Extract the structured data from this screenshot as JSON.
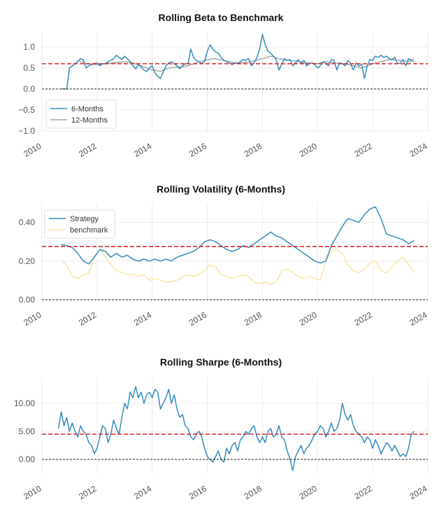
{
  "colors": {
    "strategy": "#348dbd",
    "twelve_months": "#a6a6a6",
    "benchmark": "#fbe6a0",
    "mean_line": "#d62728",
    "zero_line": "#222222",
    "grid": "#ebebeb"
  },
  "chart_data": [
    {
      "type": "line",
      "title": "Rolling Beta to Benchmark",
      "xlim": [
        2010,
        2024
      ],
      "ylim": [
        -1.0,
        1.35
      ],
      "x_ticks": [
        2010,
        2012,
        2014,
        2016,
        2018,
        2020,
        2022,
        2024
      ],
      "x_tick_labels": [
        "2010",
        "2012",
        "2014",
        "2016",
        "2018",
        "2020",
        "2022",
        "2024"
      ],
      "y_ticks": [
        -1.0,
        -0.5,
        0.0,
        0.5,
        1.0
      ],
      "y_tick_labels": [
        "−1.0",
        "−0.5",
        "0.0",
        "0.5",
        "1.0"
      ],
      "mean_line": 0.6,
      "zero_line": 0.0,
      "legend": "lower-left",
      "grid": true,
      "series": [
        {
          "name": "6-Months",
          "x": [
            2010.7,
            2010.8,
            2010.9,
            2011.0,
            2011.1,
            2011.2,
            2011.3,
            2011.4,
            2011.5,
            2011.6,
            2011.7,
            2011.8,
            2011.9,
            2012.0,
            2012.1,
            2012.2,
            2012.3,
            2012.4,
            2012.5,
            2012.6,
            2012.7,
            2012.8,
            2012.9,
            2013.0,
            2013.1,
            2013.2,
            2013.3,
            2013.4,
            2013.5,
            2013.6,
            2013.7,
            2013.8,
            2013.9,
            2014.0,
            2014.1,
            2014.2,
            2014.3,
            2014.4,
            2014.5,
            2014.6,
            2014.7,
            2014.8,
            2014.9,
            2015.0,
            2015.1,
            2015.2,
            2015.3,
            2015.4,
            2015.5,
            2015.6,
            2015.7,
            2015.8,
            2015.9,
            2016.0,
            2016.1,
            2016.2,
            2016.3,
            2016.4,
            2016.5,
            2016.6,
            2016.7,
            2016.8,
            2016.9,
            2017.0,
            2017.1,
            2017.2,
            2017.3,
            2017.4,
            2017.5,
            2017.6,
            2017.7,
            2017.8,
            2017.9,
            2018.0,
            2018.1,
            2018.2,
            2018.3,
            2018.4,
            2018.5,
            2018.6,
            2018.7,
            2018.8,
            2018.9,
            2019.0,
            2019.1,
            2019.2,
            2019.3,
            2019.4,
            2019.5,
            2019.6,
            2019.7,
            2019.8,
            2019.9,
            2020.0,
            2020.1,
            2020.2,
            2020.3,
            2020.4,
            2020.5,
            2020.6,
            2020.7,
            2020.8,
            2020.9,
            2021.0,
            2021.1,
            2021.2,
            2021.3,
            2021.4,
            2021.5,
            2021.6,
            2021.7,
            2021.8,
            2021.9,
            2022.0,
            2022.1,
            2022.2,
            2022.3,
            2022.4,
            2022.5,
            2022.6,
            2022.7,
            2022.8,
            2022.9,
            2023.0,
            2023.1,
            2023.2,
            2023.3,
            2023.4,
            2023.5
          ],
          "y": [
            0.0,
            0.0,
            0.0,
            0.5,
            0.55,
            0.6,
            0.65,
            0.72,
            0.7,
            0.5,
            0.55,
            0.58,
            0.6,
            0.62,
            0.55,
            0.6,
            0.6,
            0.65,
            0.68,
            0.72,
            0.8,
            0.75,
            0.7,
            0.78,
            0.72,
            0.65,
            0.55,
            0.48,
            0.58,
            0.52,
            0.45,
            0.42,
            0.5,
            0.55,
            0.38,
            0.3,
            0.25,
            0.4,
            0.55,
            0.62,
            0.65,
            0.6,
            0.55,
            0.48,
            0.55,
            0.6,
            0.6,
            0.95,
            0.75,
            0.68,
            0.65,
            0.6,
            0.65,
            0.9,
            1.05,
            0.95,
            0.88,
            0.85,
            0.75,
            0.68,
            0.65,
            0.62,
            0.58,
            0.62,
            0.6,
            0.65,
            0.7,
            0.68,
            0.72,
            0.55,
            0.62,
            0.75,
            0.95,
            1.3,
            1.05,
            0.9,
            0.85,
            0.78,
            0.7,
            0.45,
            0.6,
            0.72,
            0.68,
            0.7,
            0.55,
            0.62,
            0.7,
            0.6,
            0.68,
            0.55,
            0.6,
            0.62,
            0.58,
            0.5,
            0.55,
            0.65,
            0.6,
            0.55,
            0.7,
            0.68,
            0.45,
            0.62,
            0.6,
            0.55,
            0.68,
            0.6,
            0.45,
            0.62,
            0.55,
            0.58,
            0.25,
            0.55,
            0.7,
            0.68,
            0.78,
            0.75,
            0.8,
            0.75,
            0.78,
            0.72,
            0.7,
            0.75,
            0.6,
            0.62,
            0.7,
            0.55,
            0.72,
            0.68,
            0.65
          ]
        },
        {
          "name": "12-Months",
          "x": [
            2011.3,
            2011.6,
            2012.0,
            2012.3,
            2012.6,
            2013.0,
            2013.3,
            2013.6,
            2014.0,
            2014.3,
            2014.6,
            2015.0,
            2015.3,
            2015.6,
            2016.0,
            2016.3,
            2016.6,
            2017.0,
            2017.3,
            2017.6,
            2018.0,
            2018.3,
            2018.6,
            2019.0,
            2019.3,
            2019.6,
            2020.0,
            2020.3,
            2020.6,
            2021.0,
            2021.3,
            2021.6,
            2022.0,
            2022.3,
            2022.6,
            2023.0,
            2023.3,
            2023.5
          ],
          "y": [
            0.68,
            0.6,
            0.58,
            0.6,
            0.62,
            0.65,
            0.62,
            0.55,
            0.45,
            0.42,
            0.5,
            0.52,
            0.55,
            0.62,
            0.7,
            0.72,
            0.68,
            0.62,
            0.62,
            0.65,
            0.72,
            0.78,
            0.72,
            0.68,
            0.65,
            0.62,
            0.6,
            0.65,
            0.62,
            0.6,
            0.55,
            0.5,
            0.6,
            0.65,
            0.7,
            0.68,
            0.65,
            0.7
          ]
        }
      ]
    },
    {
      "type": "line",
      "title": "Rolling Volatility (6-Months)",
      "xlim": [
        2010,
        2024
      ],
      "ylim": [
        0.0,
        0.5
      ],
      "x_ticks": [
        2010,
        2012,
        2014,
        2016,
        2018,
        2020,
        2022,
        2024
      ],
      "x_tick_labels": [
        "2010",
        "2012",
        "2014",
        "2016",
        "2018",
        "2020",
        "2022",
        "2024"
      ],
      "y_ticks": [
        0.0,
        0.2,
        0.4
      ],
      "y_tick_labels": [
        "0.00",
        "0.20",
        "0.40"
      ],
      "mean_line": 0.275,
      "zero_line": 0.0,
      "legend": "top-left",
      "grid": true,
      "series": [
        {
          "name": "Strategy",
          "x": [
            2010.7,
            2010.9,
            2011.1,
            2011.3,
            2011.5,
            2011.7,
            2011.9,
            2012.1,
            2012.3,
            2012.5,
            2012.7,
            2012.9,
            2013.1,
            2013.3,
            2013.5,
            2013.7,
            2013.9,
            2014.1,
            2014.3,
            2014.5,
            2014.7,
            2014.9,
            2015.1,
            2015.3,
            2015.5,
            2015.7,
            2015.9,
            2016.1,
            2016.3,
            2016.5,
            2016.7,
            2016.9,
            2017.1,
            2017.3,
            2017.5,
            2017.7,
            2017.9,
            2018.1,
            2018.3,
            2018.5,
            2018.7,
            2018.9,
            2019.1,
            2019.3,
            2019.5,
            2019.7,
            2019.9,
            2020.1,
            2020.3,
            2020.5,
            2020.7,
            2020.9,
            2021.1,
            2021.3,
            2021.5,
            2021.7,
            2021.9,
            2022.1,
            2022.3,
            2022.5,
            2022.7,
            2022.9,
            2023.1,
            2023.3,
            2023.5
          ],
          "y": [
            0.285,
            0.28,
            0.27,
            0.24,
            0.2,
            0.185,
            0.22,
            0.26,
            0.25,
            0.22,
            0.24,
            0.22,
            0.23,
            0.21,
            0.2,
            0.21,
            0.2,
            0.21,
            0.2,
            0.21,
            0.2,
            0.22,
            0.23,
            0.24,
            0.25,
            0.27,
            0.3,
            0.31,
            0.3,
            0.28,
            0.26,
            0.25,
            0.26,
            0.28,
            0.27,
            0.29,
            0.31,
            0.33,
            0.35,
            0.33,
            0.32,
            0.3,
            0.28,
            0.26,
            0.24,
            0.22,
            0.2,
            0.19,
            0.2,
            0.28,
            0.33,
            0.38,
            0.42,
            0.41,
            0.4,
            0.44,
            0.47,
            0.48,
            0.42,
            0.34,
            0.33,
            0.32,
            0.31,
            0.29,
            0.305
          ]
        },
        {
          "name": "benchmark",
          "x": [
            2010.7,
            2010.9,
            2011.1,
            2011.3,
            2011.5,
            2011.7,
            2011.9,
            2012.1,
            2012.3,
            2012.5,
            2012.7,
            2012.9,
            2013.1,
            2013.3,
            2013.5,
            2013.7,
            2013.9,
            2014.1,
            2014.3,
            2014.5,
            2014.7,
            2014.9,
            2015.1,
            2015.3,
            2015.5,
            2015.7,
            2015.9,
            2016.1,
            2016.3,
            2016.5,
            2016.7,
            2016.9,
            2017.1,
            2017.3,
            2017.5,
            2017.7,
            2017.9,
            2018.1,
            2018.3,
            2018.5,
            2018.7,
            2018.9,
            2019.1,
            2019.3,
            2019.5,
            2019.7,
            2019.9,
            2020.1,
            2020.3,
            2020.5,
            2020.7,
            2020.9,
            2021.1,
            2021.3,
            2021.5,
            2021.7,
            2021.9,
            2022.1,
            2022.3,
            2022.5,
            2022.7,
            2022.9,
            2023.1,
            2023.3,
            2023.5
          ],
          "y": [
            0.2,
            0.18,
            0.12,
            0.11,
            0.13,
            0.14,
            0.22,
            0.26,
            0.22,
            0.18,
            0.15,
            0.14,
            0.13,
            0.13,
            0.12,
            0.13,
            0.1,
            0.11,
            0.1,
            0.09,
            0.095,
            0.1,
            0.12,
            0.13,
            0.12,
            0.13,
            0.15,
            0.18,
            0.17,
            0.13,
            0.12,
            0.11,
            0.12,
            0.13,
            0.12,
            0.09,
            0.085,
            0.09,
            0.08,
            0.09,
            0.15,
            0.16,
            0.14,
            0.12,
            0.11,
            0.12,
            0.11,
            0.1,
            0.2,
            0.25,
            0.26,
            0.24,
            0.18,
            0.15,
            0.14,
            0.16,
            0.19,
            0.2,
            0.15,
            0.14,
            0.17,
            0.2,
            0.22,
            0.18,
            0.14
          ]
        }
      ]
    },
    {
      "type": "line",
      "title": "Rolling Sharpe (6-Months)",
      "xlim": [
        2010,
        2024
      ],
      "ylim": [
        -2.5,
        14.5
      ],
      "x_ticks": [
        2010,
        2012,
        2014,
        2016,
        2018,
        2020,
        2022,
        2024
      ],
      "x_tick_labels": [
        "2010",
        "2012",
        "2014",
        "2016",
        "2018",
        "2020",
        "2022",
        "2024"
      ],
      "y_ticks": [
        0.0,
        5.0,
        10.0
      ],
      "y_tick_labels": [
        "0.00",
        "5.00",
        "10.00"
      ],
      "mean_line": 4.5,
      "zero_line": 0.0,
      "legend": "none",
      "grid": true,
      "series": [
        {
          "name": "",
          "x": [
            2010.6,
            2010.7,
            2010.8,
            2010.9,
            2011.0,
            2011.1,
            2011.2,
            2011.3,
            2011.4,
            2011.5,
            2011.6,
            2011.7,
            2011.8,
            2011.9,
            2012.0,
            2012.1,
            2012.2,
            2012.3,
            2012.4,
            2012.5,
            2012.6,
            2012.7,
            2012.8,
            2012.9,
            2013.0,
            2013.1,
            2013.2,
            2013.3,
            2013.4,
            2013.5,
            2013.6,
            2013.7,
            2013.8,
            2013.9,
            2014.0,
            2014.1,
            2014.2,
            2014.3,
            2014.4,
            2014.5,
            2014.6,
            2014.7,
            2014.8,
            2014.9,
            2015.0,
            2015.1,
            2015.2,
            2015.3,
            2015.4,
            2015.5,
            2015.6,
            2015.7,
            2015.8,
            2015.9,
            2016.0,
            2016.1,
            2016.2,
            2016.3,
            2016.4,
            2016.5,
            2016.6,
            2016.7,
            2016.8,
            2016.9,
            2017.0,
            2017.1,
            2017.2,
            2017.3,
            2017.4,
            2017.5,
            2017.6,
            2017.7,
            2017.8,
            2017.9,
            2018.0,
            2018.1,
            2018.2,
            2018.3,
            2018.4,
            2018.5,
            2018.6,
            2018.7,
            2018.8,
            2018.9,
            2019.0,
            2019.1,
            2019.2,
            2019.3,
            2019.4,
            2019.5,
            2019.6,
            2019.7,
            2019.8,
            2019.9,
            2020.0,
            2020.1,
            2020.2,
            2020.3,
            2020.4,
            2020.5,
            2020.6,
            2020.7,
            2020.8,
            2020.9,
            2021.0,
            2021.1,
            2021.2,
            2021.3,
            2021.4,
            2021.5,
            2021.6,
            2021.7,
            2021.8,
            2021.9,
            2022.0,
            2022.1,
            2022.2,
            2022.3,
            2022.4,
            2022.5,
            2022.6,
            2022.7,
            2022.8,
            2022.9,
            2023.0,
            2023.1,
            2023.2,
            2023.3,
            2023.4,
            2023.5
          ],
          "y": [
            5.5,
            8.5,
            6.0,
            7.5,
            5.0,
            6.5,
            5.0,
            4.0,
            6.0,
            5.0,
            4.5,
            3.0,
            2.5,
            1.0,
            2.0,
            4.0,
            6.0,
            5.5,
            3.0,
            4.5,
            7.0,
            5.5,
            4.5,
            7.5,
            10.0,
            9.0,
            12.0,
            11.0,
            13.0,
            11.0,
            12.0,
            10.0,
            11.5,
            12.0,
            11.0,
            12.5,
            12.0,
            9.0,
            10.0,
            11.0,
            12.5,
            10.0,
            11.5,
            9.0,
            7.5,
            8.0,
            6.0,
            5.5,
            4.0,
            3.5,
            4.5,
            5.0,
            4.0,
            2.0,
            0.5,
            0.0,
            -0.5,
            0.5,
            1.5,
            0.0,
            -0.5,
            2.0,
            1.0,
            2.5,
            3.0,
            1.5,
            3.5,
            4.0,
            5.0,
            4.5,
            5.5,
            6.0,
            4.0,
            3.0,
            4.0,
            3.0,
            5.0,
            5.5,
            4.0,
            4.5,
            6.0,
            4.0,
            3.5,
            1.5,
            0.0,
            -2.0,
            0.5,
            1.5,
            2.5,
            1.0,
            2.0,
            2.5,
            3.5,
            4.5,
            5.0,
            6.0,
            5.5,
            4.0,
            5.0,
            6.5,
            5.0,
            5.5,
            7.0,
            10.0,
            8.0,
            7.0,
            8.0,
            6.0,
            5.0,
            4.5,
            4.0,
            3.0,
            4.0,
            3.5,
            2.0,
            3.5,
            2.5,
            1.0,
            2.0,
            3.0,
            2.5,
            1.5,
            2.5,
            1.5,
            0.5,
            1.0,
            0.5,
            2.0,
            4.5,
            5.0
          ]
        }
      ]
    }
  ]
}
